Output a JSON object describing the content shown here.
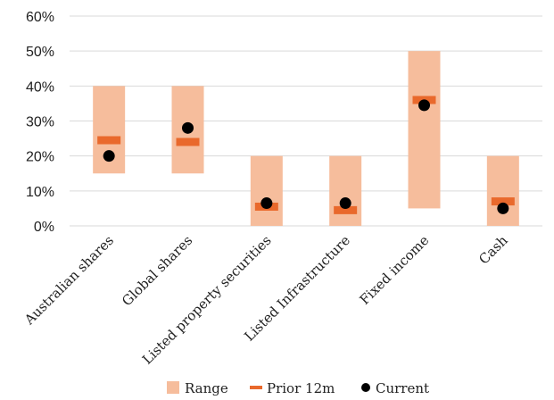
{
  "chart_data": {
    "type": "range-bar",
    "categories": [
      "Australian shares",
      "Global shares",
      "Listed property securities",
      "Listed Infrastructure",
      "Fixed income",
      "Cash"
    ],
    "series": [
      {
        "name": "Range",
        "low": [
          15,
          15,
          0,
          0,
          5,
          0
        ],
        "high": [
          40,
          40,
          20,
          20,
          50,
          20
        ]
      },
      {
        "name": "Prior 12m",
        "values": [
          24.5,
          24,
          5.5,
          4.5,
          36,
          7
        ]
      },
      {
        "name": "Current",
        "values": [
          20,
          28,
          6.5,
          6.5,
          34.5,
          5
        ]
      }
    ],
    "y_ticks": [
      "0%",
      "10%",
      "20%",
      "30%",
      "40%",
      "50%",
      "60%"
    ],
    "ylim": [
      0,
      60
    ],
    "grid": true,
    "legend": "bottom",
    "colors": {
      "range": "#f6bd9c",
      "prior": "#e9692c",
      "current": "#000000",
      "grid": "#d9d9d9"
    }
  }
}
